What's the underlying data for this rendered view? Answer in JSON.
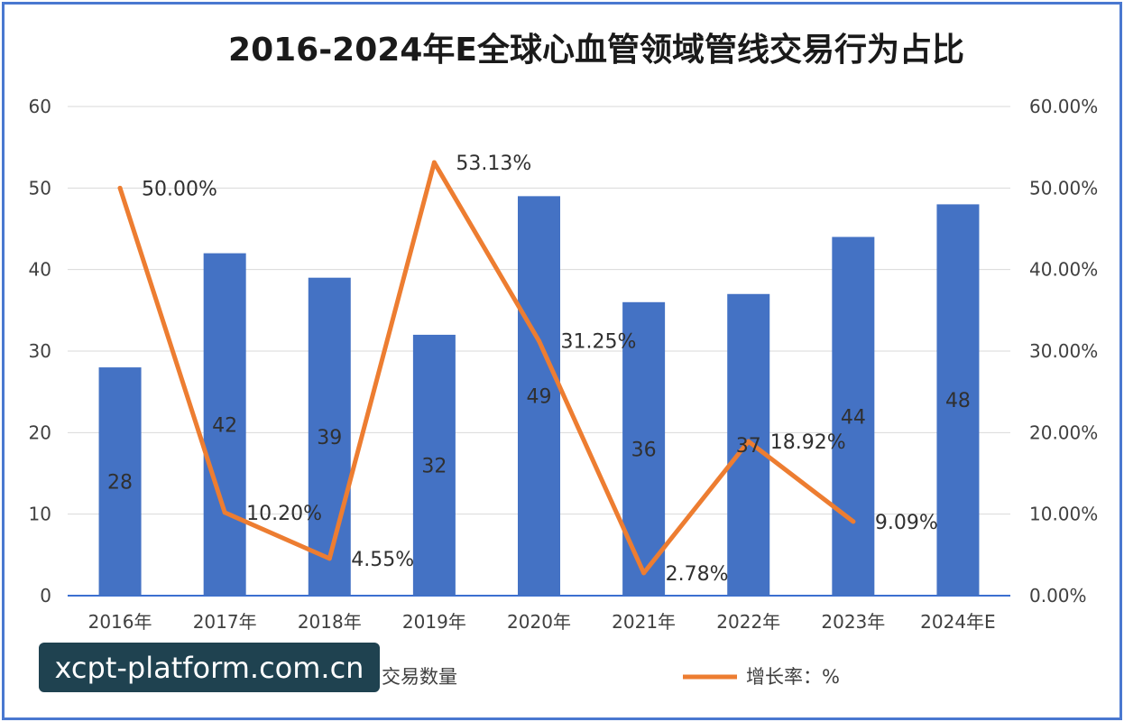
{
  "chart_data": {
    "type": "bar+line",
    "title": "2016-2024年E全球心血管领域管线交易行为占比",
    "categories": [
      "2016年",
      "2017年",
      "2018年",
      "2019年",
      "2020年",
      "2021年",
      "2022年",
      "2023年",
      "2024年E"
    ],
    "bar_series": {
      "name": "交易数量",
      "values": [
        28,
        42,
        39,
        32,
        49,
        36,
        37,
        44,
        48
      ],
      "labels": [
        "28",
        "42",
        "39",
        "32",
        "49",
        "36",
        "37",
        "44",
        "48"
      ],
      "color": "#4472c4"
    },
    "line_series": {
      "name": "增长率：%",
      "values": [
        50.0,
        10.2,
        4.55,
        53.13,
        31.25,
        2.78,
        18.92,
        9.09
      ],
      "labels": [
        "50.00%",
        "10.20%",
        "4.55%",
        "53.13%",
        "31.25%",
        "2.78%",
        "18.92%",
        "9.09%"
      ],
      "color": "#ed7d31"
    },
    "y_left": {
      "min": 0,
      "max": 60,
      "ticks": [
        "0",
        "10",
        "20",
        "30",
        "40",
        "50",
        "60"
      ]
    },
    "y_right": {
      "min": 0,
      "max": 60,
      "ticks": [
        "0.00%",
        "10.00%",
        "20.00%",
        "30.00%",
        "40.00%",
        "50.00%",
        "60.00%"
      ]
    },
    "grid": true,
    "legend_position": "bottom"
  },
  "watermark": {
    "text": "xcpt-platform.com.cn"
  }
}
